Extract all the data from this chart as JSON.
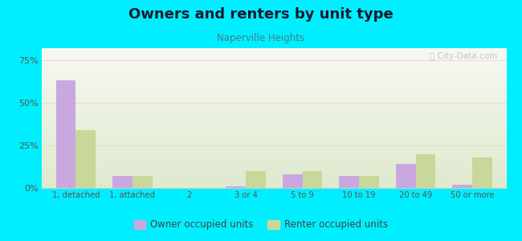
{
  "title": "Owners and renters by unit type",
  "subtitle": "Naperville Heights",
  "categories": [
    "1, detached",
    "1, attached",
    "2",
    "3 or 4",
    "5 to 9",
    "10 to 19",
    "20 to 49",
    "50 or more"
  ],
  "owner_values": [
    63,
    7,
    0,
    1,
    8,
    7,
    14,
    2
  ],
  "renter_values": [
    34,
    7,
    0,
    10,
    10,
    7,
    20,
    18
  ],
  "owner_color": "#c9a8e0",
  "renter_color": "#c8d89a",
  "background_color": "#00eeff",
  "plot_bg_top": "#f8f8f3",
  "plot_bg_bottom": "#deeace",
  "ylabel_ticks": [
    "0%",
    "25%",
    "50%",
    "75%"
  ],
  "ytick_values": [
    0,
    25,
    50,
    75
  ],
  "ylim": [
    0,
    82
  ],
  "legend_owner": "Owner occupied units",
  "legend_renter": "Renter occupied units",
  "bar_width": 0.35,
  "title_color": "#1a1a2e",
  "subtitle_color": "#4a7a8a",
  "tick_color": "#555555",
  "grid_color": "#e0e0d0",
  "watermark_color": "#bbbbbb"
}
